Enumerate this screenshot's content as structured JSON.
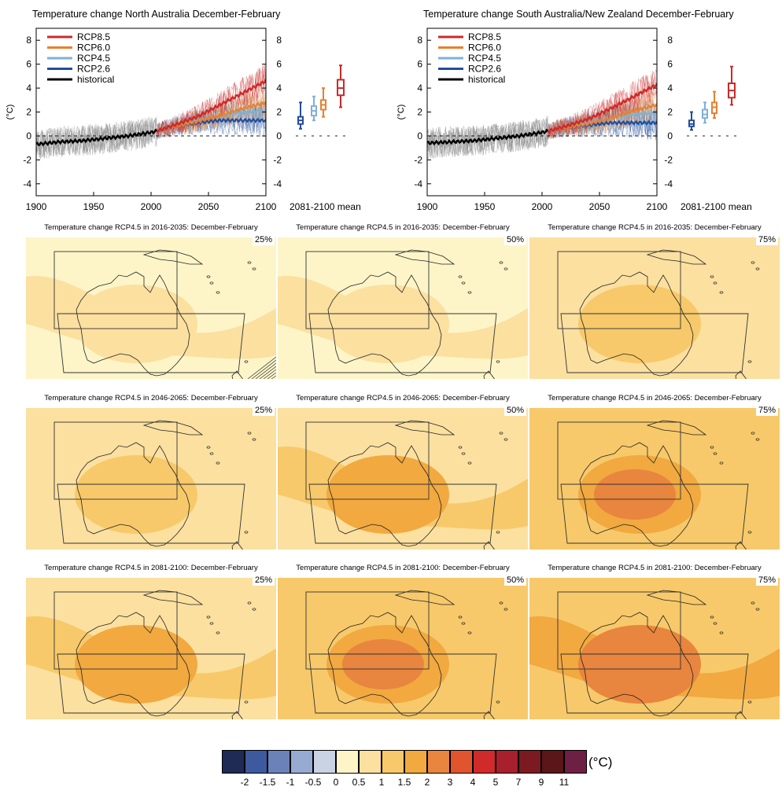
{
  "colors": {
    "rcp85": "#cc2a2a",
    "rcp60": "#e8802e",
    "rcp45": "#7fb1d8",
    "rcp26": "#244c9a",
    "historical": "#000000",
    "hist_spread": "#8a8a8a"
  },
  "timeseries": [
    {
      "title": "Temperature change North Australia December-February",
      "ylabel": "(°C)",
      "yticks": [
        "-4",
        "-2",
        "0",
        "2",
        "4",
        "6",
        "8"
      ],
      "xticks": [
        "1900",
        "1950",
        "2000",
        "2050",
        "2100"
      ],
      "legend": [
        "RCP8.5",
        "RCP6.0",
        "RCP4.5",
        "RCP2.6",
        "historical"
      ],
      "mean_label": "2081-2100 mean"
    },
    {
      "title": "Temperature change South Australia/New Zealand December-February",
      "ylabel": "(°C)",
      "yticks": [
        "-4",
        "-2",
        "0",
        "2",
        "4",
        "6",
        "8"
      ],
      "xticks": [
        "1900",
        "1950",
        "2000",
        "2050",
        "2100"
      ],
      "legend": [
        "RCP8.5",
        "RCP6.0",
        "RCP4.5",
        "RCP2.6",
        "historical"
      ],
      "mean_label": "2081-2100 mean"
    }
  ],
  "maps": [
    {
      "title": "Temperature change RCP4.5 in 2016-2035: December-February",
      "pct": "25%"
    },
    {
      "title": "Temperature change RCP4.5 in 2016-2035: December-February",
      "pct": "50%"
    },
    {
      "title": "Temperature change RCP4.5 in 2016-2035: December-February",
      "pct": "75%"
    },
    {
      "title": "Temperature change RCP4.5 in 2046-2065: December-February",
      "pct": "25%"
    },
    {
      "title": "Temperature change RCP4.5 in 2046-2065: December-February",
      "pct": "50%"
    },
    {
      "title": "Temperature change RCP4.5 in 2046-2065: December-February",
      "pct": "75%"
    },
    {
      "title": "Temperature change RCP4.5 in 2081-2100: December-February",
      "pct": "25%"
    },
    {
      "title": "Temperature change RCP4.5 in 2081-2100: December-February",
      "pct": "50%"
    },
    {
      "title": "Temperature change RCP4.5 in 2081-2100: December-February",
      "pct": "75%"
    }
  ],
  "colorbar": {
    "unit": "(°C)",
    "labels": [
      "-2",
      "-1.5",
      "-1",
      "-0.5",
      "0",
      "0.5",
      "1",
      "1.5",
      "2",
      "3",
      "4",
      "5",
      "7",
      "9",
      "11"
    ],
    "colors": [
      "#1f2a55",
      "#3e5a9e",
      "#6b82b8",
      "#97abd2",
      "#c9d3e3",
      "#fdf5c8",
      "#fbe0a0",
      "#f7c96a",
      "#f1a940",
      "#e8853e",
      "#e0552e",
      "#d02a2a",
      "#a8202c",
      "#7c1a22",
      "#5a1618",
      "#6e1f44"
    ]
  },
  "chart_data": [
    {
      "type": "line",
      "title": "Temperature change North Australia December-February",
      "ylabel": "(°C)",
      "xlim": [
        1900,
        2100
      ],
      "ylim": [
        -5,
        9
      ],
      "series": [
        {
          "name": "historical",
          "x": [
            1900,
            1920,
            1940,
            1960,
            1980,
            2000,
            2005
          ],
          "values": [
            -0.7,
            -0.5,
            -0.4,
            -0.2,
            0.0,
            0.3,
            0.4
          ]
        },
        {
          "name": "RCP8.5",
          "x": [
            2005,
            2020,
            2040,
            2060,
            2080,
            2100
          ],
          "values": [
            0.4,
            0.9,
            1.6,
            2.6,
            3.6,
            4.6
          ]
        },
        {
          "name": "RCP6.0",
          "x": [
            2005,
            2020,
            2040,
            2060,
            2080,
            2100
          ],
          "values": [
            0.4,
            0.8,
            1.2,
            1.7,
            2.3,
            2.8
          ]
        },
        {
          "name": "RCP4.5",
          "x": [
            2005,
            2020,
            2040,
            2060,
            2080,
            2100
          ],
          "values": [
            0.4,
            0.9,
            1.3,
            1.7,
            2.0,
            2.1
          ]
        },
        {
          "name": "RCP2.6",
          "x": [
            2005,
            2020,
            2040,
            2060,
            2080,
            2100
          ],
          "values": [
            0.4,
            0.8,
            1.1,
            1.3,
            1.3,
            1.3
          ]
        }
      ],
      "boxplots_2081_2100": [
        {
          "name": "RCP2.6",
          "min": 0.6,
          "q1": 1.0,
          "median": 1.3,
          "q3": 1.6,
          "max": 2.8
        },
        {
          "name": "RCP4.5",
          "min": 1.3,
          "q1": 1.7,
          "median": 2.1,
          "q3": 2.5,
          "max": 3.3
        },
        {
          "name": "RCP6.0",
          "min": 1.6,
          "q1": 2.2,
          "median": 2.6,
          "q3": 3.0,
          "max": 4.0
        },
        {
          "name": "RCP8.5",
          "min": 2.4,
          "q1": 3.4,
          "median": 4.0,
          "q3": 4.7,
          "max": 5.9
        }
      ]
    },
    {
      "type": "line",
      "title": "Temperature change South Australia/New Zealand December-February",
      "ylabel": "(°C)",
      "xlim": [
        1900,
        2100
      ],
      "ylim": [
        -5,
        9
      ],
      "series": [
        {
          "name": "historical",
          "x": [
            1900,
            1920,
            1940,
            1960,
            1980,
            2000,
            2005
          ],
          "values": [
            -0.6,
            -0.5,
            -0.4,
            -0.2,
            0.0,
            0.3,
            0.4
          ]
        },
        {
          "name": "RCP8.5",
          "x": [
            2005,
            2020,
            2040,
            2060,
            2080,
            2100
          ],
          "values": [
            0.4,
            0.8,
            1.4,
            2.3,
            3.3,
            4.3
          ]
        },
        {
          "name": "RCP6.0",
          "x": [
            2005,
            2020,
            2040,
            2060,
            2080,
            2100
          ],
          "values": [
            0.4,
            0.7,
            1.0,
            1.5,
            2.1,
            2.6
          ]
        },
        {
          "name": "RCP4.5",
          "x": [
            2005,
            2020,
            2040,
            2060,
            2080,
            2100
          ],
          "values": [
            0.4,
            0.8,
            1.1,
            1.5,
            1.8,
            1.9
          ]
        },
        {
          "name": "RCP2.6",
          "x": [
            2005,
            2020,
            2040,
            2060,
            2080,
            2100
          ],
          "values": [
            0.4,
            0.7,
            0.9,
            1.1,
            1.1,
            1.1
          ]
        }
      ],
      "boxplots_2081_2100": [
        {
          "name": "RCP2.6",
          "min": 0.5,
          "q1": 0.8,
          "median": 1.0,
          "q3": 1.3,
          "max": 2.0
        },
        {
          "name": "RCP4.5",
          "min": 1.1,
          "q1": 1.5,
          "median": 1.8,
          "q3": 2.2,
          "max": 2.8
        },
        {
          "name": "RCP6.0",
          "min": 1.5,
          "q1": 1.9,
          "median": 2.4,
          "q3": 2.8,
          "max": 3.7
        },
        {
          "name": "RCP8.5",
          "min": 2.6,
          "q1": 3.2,
          "median": 3.8,
          "q3": 4.4,
          "max": 5.8
        }
      ]
    }
  ]
}
